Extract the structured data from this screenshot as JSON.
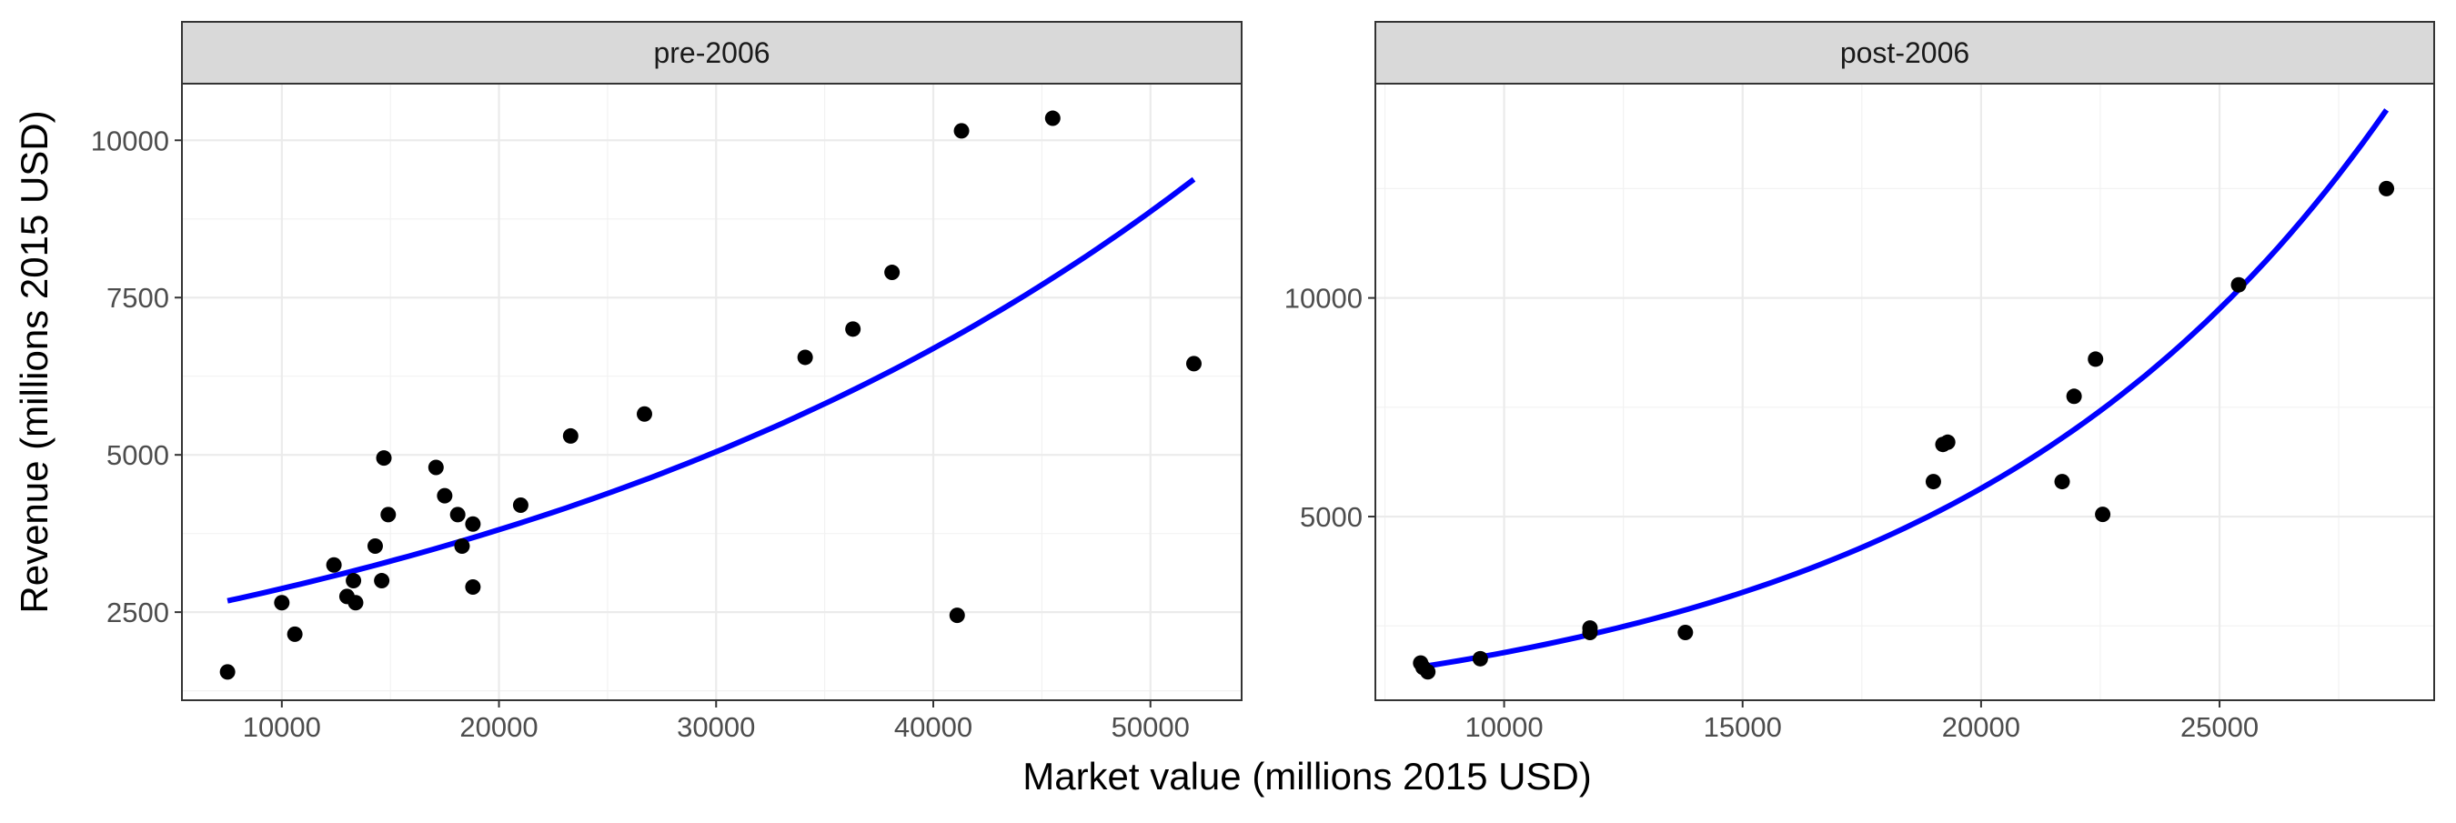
{
  "figure": {
    "xlabel": "Market value (millions 2015 USD)",
    "ylabel": "Revenue (millions 2015 USD)",
    "point_color": "#000000",
    "line_color": "#0000ff",
    "strip_color": "#d9d9d9"
  },
  "chart_data": [
    {
      "type": "scatter",
      "title": "pre-2006",
      "xlim": [
        5400,
        54200
      ],
      "ylim": [
        1100,
        10900
      ],
      "x_ticks": [
        10000,
        20000,
        30000,
        40000,
        50000
      ],
      "y_ticks": [
        2500,
        5000,
        7500,
        10000
      ],
      "grid": true,
      "points": [
        {
          "x": 7500,
          "y": 1550
        },
        {
          "x": 10000,
          "y": 2650
        },
        {
          "x": 10600,
          "y": 2150
        },
        {
          "x": 12400,
          "y": 3250
        },
        {
          "x": 13000,
          "y": 2750
        },
        {
          "x": 13300,
          "y": 3000
        },
        {
          "x": 13400,
          "y": 2650
        },
        {
          "x": 14300,
          "y": 3550
        },
        {
          "x": 14600,
          "y": 3000
        },
        {
          "x": 14700,
          "y": 4950
        },
        {
          "x": 14900,
          "y": 4050
        },
        {
          "x": 17100,
          "y": 4800
        },
        {
          "x": 17500,
          "y": 4350
        },
        {
          "x": 18100,
          "y": 4050
        },
        {
          "x": 18300,
          "y": 3550
        },
        {
          "x": 18800,
          "y": 3900
        },
        {
          "x": 18800,
          "y": 2900
        },
        {
          "x": 21000,
          "y": 4200
        },
        {
          "x": 23300,
          "y": 5300
        },
        {
          "x": 26700,
          "y": 5650
        },
        {
          "x": 34100,
          "y": 6550
        },
        {
          "x": 36300,
          "y": 7000
        },
        {
          "x": 38100,
          "y": 7900
        },
        {
          "x": 41100,
          "y": 2450
        },
        {
          "x": 41300,
          "y": 10150
        },
        {
          "x": 45500,
          "y": 10350
        },
        {
          "x": 52000,
          "y": 6450
        }
      ],
      "fit": {
        "model": "exponential",
        "x_start": 7500,
        "x_end": 52000,
        "y_start": 2680,
        "y_end": 9380
      }
    },
    {
      "type": "scatter",
      "title": "post-2006",
      "xlim": [
        7300,
        29500
      ],
      "ylim": [
        800,
        14900
      ],
      "x_ticks": [
        10000,
        15000,
        20000,
        25000
      ],
      "y_ticks": [
        5000,
        10000
      ],
      "grid": true,
      "points": [
        {
          "x": 8250,
          "y": 1650
        },
        {
          "x": 8300,
          "y": 1550
        },
        {
          "x": 8400,
          "y": 1450
        },
        {
          "x": 9500,
          "y": 1750
        },
        {
          "x": 11800,
          "y": 2450
        },
        {
          "x": 11800,
          "y": 2350
        },
        {
          "x": 13800,
          "y": 2350
        },
        {
          "x": 19000,
          "y": 5800
        },
        {
          "x": 19200,
          "y": 6650
        },
        {
          "x": 19300,
          "y": 6700
        },
        {
          "x": 21700,
          "y": 5800
        },
        {
          "x": 21950,
          "y": 7750
        },
        {
          "x": 22400,
          "y": 8600
        },
        {
          "x": 22550,
          "y": 5050
        },
        {
          "x": 25400,
          "y": 10300
        },
        {
          "x": 28500,
          "y": 12500
        }
      ],
      "fit": {
        "model": "exponential",
        "x_start": 8300,
        "x_end": 28500,
        "y_start": 1570,
        "y_end": 14300
      }
    }
  ]
}
